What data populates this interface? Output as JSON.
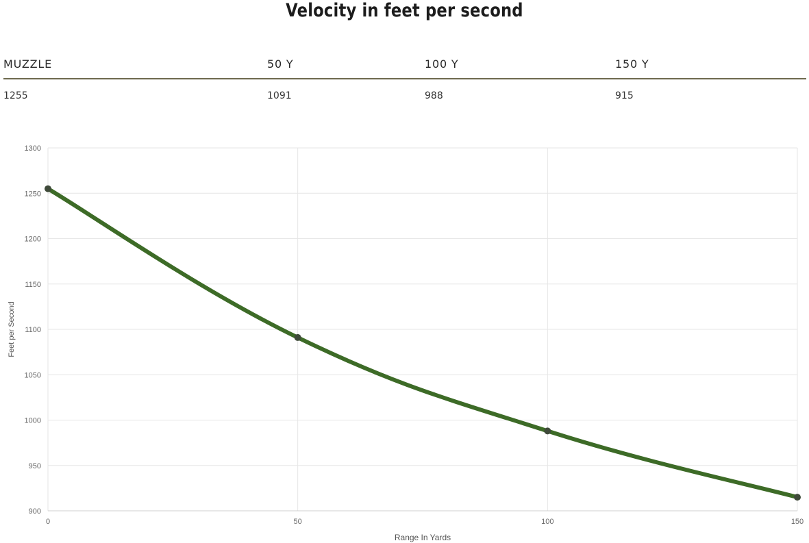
{
  "header": {
    "title": "Velocity in feet per second"
  },
  "table": {
    "columns": [
      "MUZZLE",
      "50 Y",
      "100 Y",
      "150 Y"
    ],
    "values": [
      "1255",
      "1091",
      "988",
      "915"
    ]
  },
  "colors": {
    "line": "#3d6b27",
    "point": "#3f4a3a",
    "grid": "#e6e6e6",
    "rule": "#6e6a4f"
  },
  "chart_data": {
    "type": "line",
    "x": [
      0,
      50,
      100,
      150
    ],
    "series": [
      {
        "name": "Velocity",
        "values": [
          1255,
          1091,
          988,
          915
        ]
      }
    ],
    "xlabel": "Range In Yards",
    "ylabel": "Feet per Second",
    "xlim": [
      0,
      150
    ],
    "ylim": [
      900,
      1300
    ],
    "xticks": [
      0,
      50,
      100,
      150
    ],
    "yticks": [
      900,
      950,
      1000,
      1050,
      1100,
      1150,
      1200,
      1250,
      1300
    ],
    "grid": true,
    "legend": "none"
  }
}
